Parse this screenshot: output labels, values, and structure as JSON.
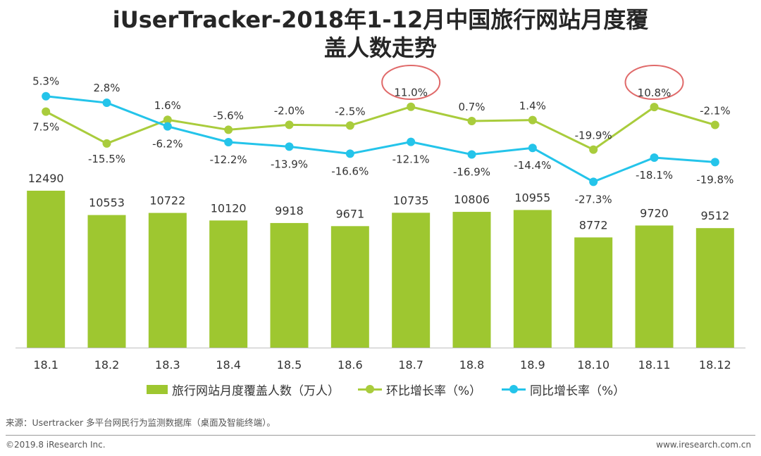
{
  "title_line1": "iUserTracker-2018年1-12月中国旅行网站月度覆",
  "title_line2": "盖人数走势",
  "chart_data": {
    "type": "bar",
    "categories": [
      "18.1",
      "18.2",
      "18.3",
      "18.4",
      "18.5",
      "18.6",
      "18.7",
      "18.8",
      "18.9",
      "18.10",
      "18.11",
      "18.12"
    ],
    "series": [
      {
        "name": "旅行网站月度覆盖人数（万人）",
        "kind": "bar",
        "color": "#9ec730",
        "values": [
          12490,
          10553,
          10722,
          10120,
          9918,
          9671,
          10735,
          10806,
          10955,
          8772,
          9720,
          9512
        ],
        "labels": [
          "12490",
          "10553",
          "10722",
          "10120",
          "9918",
          "9671",
          "10735",
          "10806",
          "10955",
          "8772",
          "9720",
          "9512"
        ]
      },
      {
        "name": "环比增长率（%）",
        "kind": "line",
        "color": "#a9cc3c",
        "values": [
          7.5,
          -15.5,
          1.6,
          -5.6,
          -2.0,
          -2.5,
          11.0,
          0.7,
          1.4,
          -19.9,
          10.8,
          -2.1
        ],
        "labels": [
          "7.5%",
          "-15.5%",
          "1.6%",
          "-5.6%",
          "-2.0%",
          "-2.5%",
          "11.0%",
          "0.7%",
          "1.4%",
          "-19.9%",
          "10.8%",
          "-2.1%"
        ]
      },
      {
        "name": "同比增长率（%）",
        "kind": "line",
        "color": "#24c4ea",
        "values": [
          5.3,
          2.8,
          -6.2,
          -12.2,
          -13.9,
          -16.6,
          -12.1,
          -16.9,
          -14.4,
          -27.3,
          -18.1,
          -19.8
        ],
        "labels": [
          "5.3%",
          "2.8%",
          "-6.2%",
          "-12.2%",
          "-13.9%",
          "-16.6%",
          "-12.1%",
          "-16.9%",
          "-14.4%",
          "-27.3%",
          "-18.1%",
          "-19.8%"
        ]
      }
    ],
    "highlighted": [
      "18.7",
      "18.11"
    ],
    "highlight_color": "#e06a6a",
    "legend_position": "bottom"
  },
  "legend": {
    "bar": "旅行网站月度覆盖人数（万人）",
    "line1": "环比增长率（%）",
    "line2": "同比增长率（%）"
  },
  "footer": {
    "source": "来源：Usertracker 多平台网民行为监测数据库（桌面及智能终端）。",
    "copyright": "©2019.8 iResearch Inc.",
    "website": "www.iresearch.com.cn"
  }
}
